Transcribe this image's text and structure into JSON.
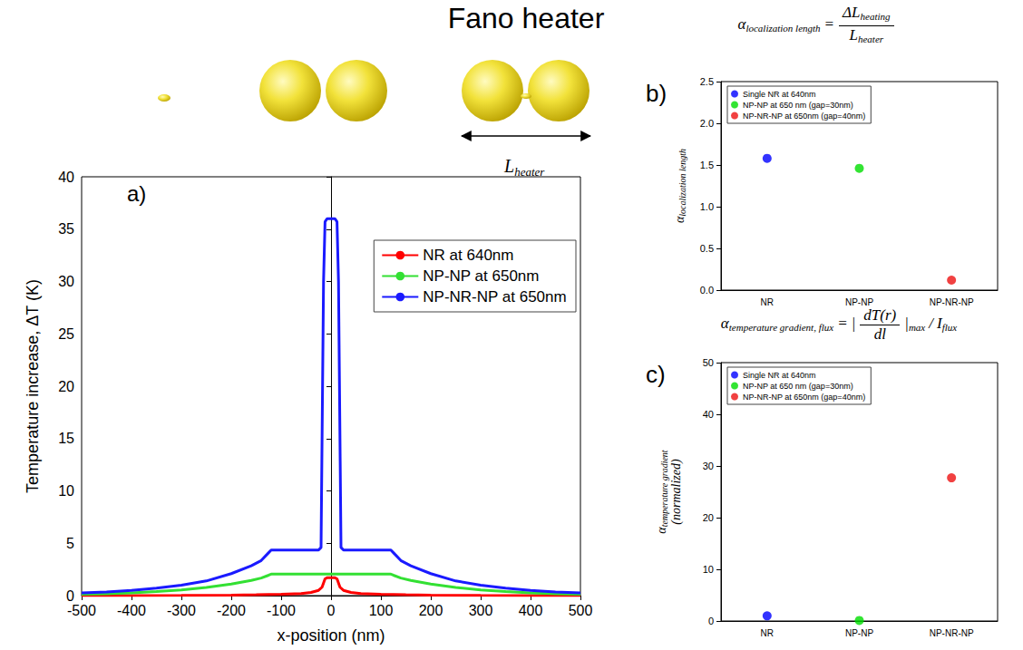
{
  "title": "Fano heater",
  "illustration_label": {
    "t": "L",
    "sub": "heater"
  },
  "chart_data": [
    {
      "type": "line",
      "annotation": "a)",
      "xlabel": "x-position (nm)",
      "ylabel": "Temperature increase, ΔT (K)",
      "xlim": [
        -500,
        500
      ],
      "xticks": [
        -500,
        -400,
        -300,
        -200,
        -100,
        0,
        100,
        200,
        300,
        400,
        500
      ],
      "ylim": [
        0,
        40
      ],
      "yticks": [
        0,
        5,
        10,
        15,
        20,
        25,
        30,
        35,
        40
      ],
      "grid": false,
      "legend": "upper right",
      "line_style": "solid",
      "series": [
        {
          "name": "NR at 640nm",
          "color": "#ff0000",
          "x": [
            -500,
            -400,
            -300,
            -200,
            -150,
            -100,
            -60,
            -40,
            -25,
            -18,
            -12,
            -8,
            0,
            8,
            12,
            18,
            25,
            40,
            60,
            100,
            150,
            200,
            300,
            400,
            500
          ],
          "values": [
            0,
            0.01,
            0.02,
            0.05,
            0.08,
            0.12,
            0.2,
            0.3,
            0.5,
            0.8,
            1.6,
            1.7,
            1.7,
            1.7,
            1.6,
            0.8,
            0.5,
            0.3,
            0.2,
            0.12,
            0.08,
            0.05,
            0.02,
            0.01,
            0
          ]
        },
        {
          "name": "NP-NP at 650nm",
          "color": "#33e033",
          "x": [
            -500,
            -450,
            -400,
            -350,
            -300,
            -250,
            -200,
            -160,
            -140,
            -125,
            -120,
            -60,
            0,
            60,
            120,
            125,
            140,
            160,
            200,
            250,
            300,
            350,
            400,
            450,
            500
          ],
          "values": [
            0.12,
            0.18,
            0.27,
            0.38,
            0.55,
            0.78,
            1.1,
            1.45,
            1.68,
            1.95,
            2.05,
            2.05,
            2.05,
            2.05,
            2.05,
            1.95,
            1.68,
            1.45,
            1.1,
            0.78,
            0.55,
            0.38,
            0.27,
            0.18,
            0.12
          ]
        },
        {
          "name": "NP-NR-NP at 650nm",
          "color": "#1a1aff",
          "x": [
            -500,
            -450,
            -400,
            -350,
            -300,
            -250,
            -200,
            -160,
            -140,
            -125,
            -120,
            -60,
            -25,
            -20,
            -15,
            -12,
            -8,
            0,
            8,
            12,
            15,
            20,
            25,
            60,
            120,
            125,
            140,
            160,
            200,
            250,
            300,
            350,
            400,
            450,
            500
          ],
          "values": [
            0.25,
            0.35,
            0.5,
            0.72,
            1.0,
            1.4,
            2.1,
            2.85,
            3.35,
            4.1,
            4.35,
            4.35,
            4.35,
            4.6,
            30,
            35.7,
            36,
            36,
            36,
            35.7,
            30,
            4.6,
            4.35,
            4.35,
            4.35,
            4.1,
            3.35,
            2.85,
            2.1,
            1.4,
            1.0,
            0.72,
            0.5,
            0.35,
            0.25
          ]
        }
      ]
    },
    {
      "type": "scatter",
      "annotation": "b)",
      "formula": [
        {
          "t": "α",
          "sub": "localization length"
        },
        {
          "t": "="
        },
        {
          "frac": [
            [
              {
                "t": "ΔL",
                "sub": "heating"
              }
            ],
            [
              {
                "t": "L",
                "sub": "heater"
              }
            ]
          ]
        }
      ],
      "ylabel": [
        [
          {
            "t": "α",
            "sub": "localization length"
          }
        ]
      ],
      "categories": [
        "NR",
        "NP-NP",
        "NP-NR-NP"
      ],
      "ylim": [
        0,
        2.5
      ],
      "yticks": [
        {
          "value": 0,
          "label": "0.0"
        },
        0.5,
        {
          "value": 1,
          "label": "1.0"
        },
        1.5,
        {
          "value": 2,
          "label": "2.0"
        },
        2.5
      ],
      "grid": false,
      "legend": "upper left",
      "marker": "circle",
      "series": [
        {
          "name": "Single NR at 640nm",
          "color": "#0000ff",
          "values": [
            1.58,
            null,
            null
          ]
        },
        {
          "name": "NP-NP at 650 nm (gap=30nm)",
          "color": "#00dd00",
          "values": [
            null,
            1.46,
            null
          ]
        },
        {
          "name": "NP-NR-NP at 650nm (gap=40nm)",
          "color": "#ee1111",
          "values": [
            null,
            null,
            0.12
          ]
        }
      ]
    },
    {
      "type": "scatter",
      "annotation": "c)",
      "formula": [
        {
          "t": "α",
          "sub": "temperature gradient, flux"
        },
        {
          "t": "="
        },
        {
          "t": "|"
        },
        {
          "frac": [
            [
              {
                "t": "dT(r)"
              }
            ],
            [
              {
                "t": "dl"
              }
            ]
          ]
        },
        {
          "t": "|",
          "sub": "max"
        },
        {
          "t": "/"
        },
        {
          "t": "I",
          "sub": "flux"
        }
      ],
      "ylabel": [
        [
          {
            "t": "α",
            "sub": "temperature gradient"
          }
        ],
        [
          {
            "t": "(normalized)"
          }
        ]
      ],
      "categories": [
        "NR",
        "NP-NP",
        "NP-NR-NP"
      ],
      "ylim": [
        0,
        50
      ],
      "yticks": [
        0,
        10,
        20,
        30,
        40,
        50
      ],
      "grid": false,
      "legend": "upper left",
      "marker": "circle",
      "series": [
        {
          "name": "Single NR at 640nm",
          "color": "#0000ff",
          "values": [
            1.0,
            null,
            null
          ]
        },
        {
          "name": "NP-NP at 650 nm (gap=30nm)",
          "color": "#00dd00",
          "values": [
            null,
            0.1,
            null
          ]
        },
        {
          "name": "NP-NR-NP at 650nm (gap=40nm)",
          "color": "#ee1111",
          "values": [
            null,
            null,
            27.7
          ]
        }
      ]
    }
  ]
}
